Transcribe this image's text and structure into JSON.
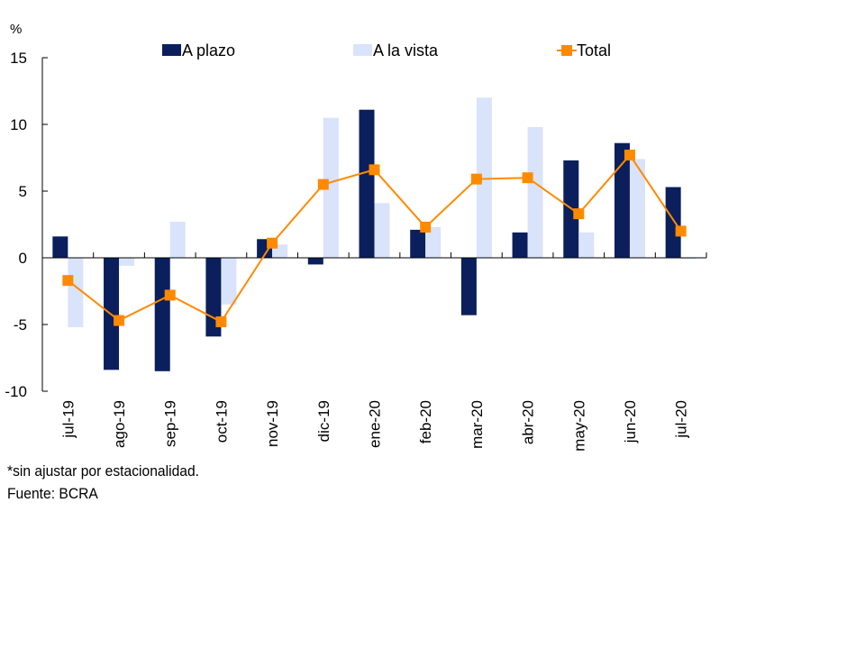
{
  "chart_data": {
    "type": "bar",
    "title": "",
    "ylabel": "%",
    "xlabel": "",
    "ylim": [
      -10,
      15
    ],
    "yticks": [
      15,
      10,
      5,
      0,
      -5,
      -10
    ],
    "grid": false,
    "legend_position": "top",
    "categories": [
      "jul-19",
      "ago-19",
      "sep-19",
      "oct-19",
      "nov-19",
      "dic-19",
      "ene-20",
      "feb-20",
      "mar-20",
      "abr-20",
      "may-20",
      "jun-20",
      "jul-20"
    ],
    "series": [
      {
        "name": "A plazo",
        "type": "bar",
        "color": "#0a1f5c",
        "values": [
          1.6,
          -8.4,
          -8.5,
          -5.9,
          1.4,
          -0.5,
          11.1,
          2.1,
          -4.3,
          1.9,
          7.3,
          8.6,
          5.3
        ]
      },
      {
        "name": "A la vista",
        "type": "bar",
        "color": "#d9e3fa",
        "values": [
          -5.2,
          -0.6,
          2.7,
          -3.5,
          1.0,
          10.5,
          4.1,
          2.3,
          12.0,
          9.8,
          1.9,
          7.4,
          -0.1
        ]
      },
      {
        "name": "Total",
        "type": "line",
        "color": "#ff8a00",
        "values": [
          -1.7,
          -4.7,
          -2.8,
          -4.8,
          1.1,
          5.5,
          6.6,
          2.3,
          5.9,
          6.0,
          3.3,
          7.7,
          2.0
        ]
      }
    ]
  },
  "notes": {
    "line1": "*sin ajustar por estacionalidad.",
    "line2": "Fuente: BCRA"
  }
}
